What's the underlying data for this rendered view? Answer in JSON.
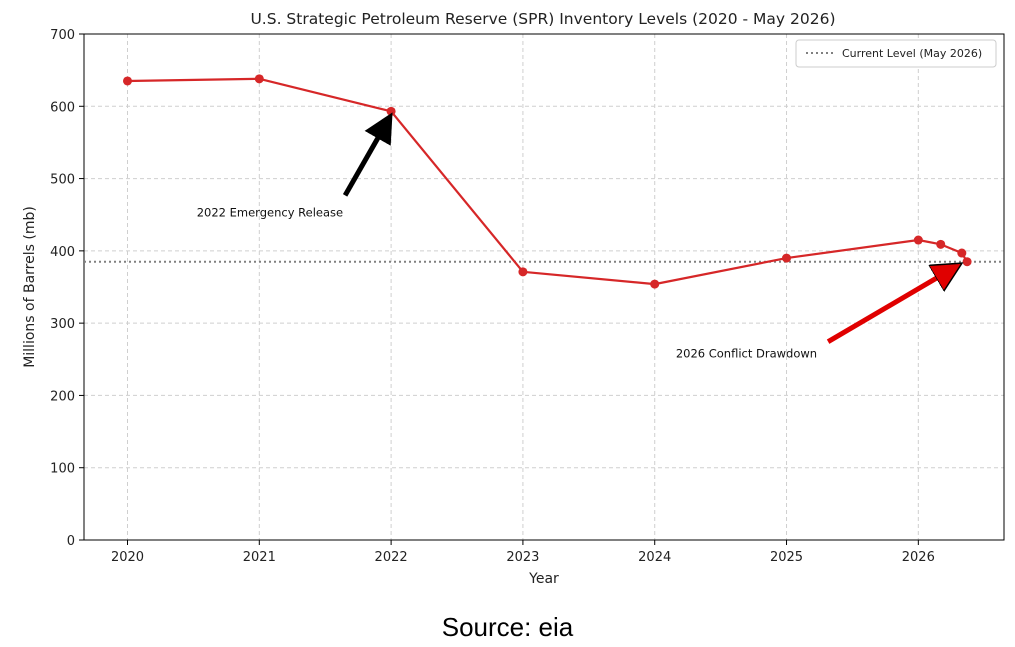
{
  "chart_data": {
    "type": "line",
    "title": "U.S. Strategic Petroleum Reserve (SPR) Inventory Levels (2020 - May 2026)",
    "xlabel": "Year",
    "ylabel": "Millions of Barrels (mb)",
    "xlim": [
      2019.67,
      2026.65
    ],
    "ylim": [
      0,
      700
    ],
    "xticks": [
      2020,
      2021,
      2022,
      2023,
      2024,
      2025,
      2026
    ],
    "yticks": [
      0,
      100,
      200,
      300,
      400,
      500,
      600,
      700
    ],
    "grid": true,
    "series": [
      {
        "color": "#d62728",
        "x": [
          2020.0,
          2021.0,
          2022.0,
          2023.0,
          2024.0,
          2025.0,
          2026.0,
          2026.17,
          2026.33,
          2026.37
        ],
        "y": [
          635,
          638,
          593,
          371,
          354,
          390,
          415,
          409,
          397,
          385
        ]
      }
    ],
    "reference_line": {
      "y": 385,
      "name": "Current Level (May 2026)",
      "color": "#808080",
      "style": "dotted"
    },
    "legend": {
      "position": "top-right",
      "entries": [
        "Current Level (May 2026)"
      ]
    },
    "annotations": [
      {
        "text": "2022 Emergency Release",
        "point": [
          2022.0,
          593
        ],
        "arrow_color": "#000000"
      },
      {
        "text": "2026 Conflict Drawdown",
        "point": [
          2026.37,
          385
        ],
        "arrow_color": "#e00000"
      }
    ]
  },
  "source": "Source: eia"
}
